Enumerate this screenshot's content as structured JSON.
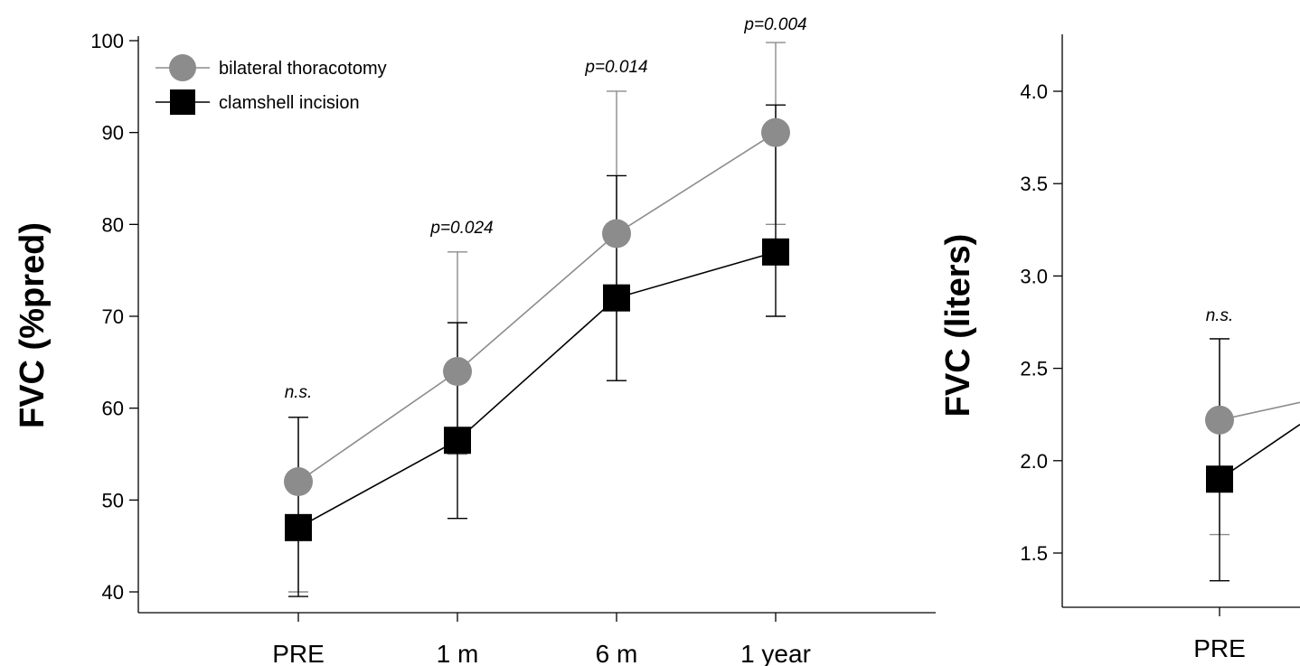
{
  "chart_data": [
    {
      "type": "line",
      "categories": [
        "PRE",
        "1 m",
        "6 m",
        "1 year"
      ],
      "ylabel": "FVC (%pred)",
      "ylim": [
        40,
        100
      ],
      "yticks": [
        40,
        50,
        60,
        70,
        80,
        90,
        100
      ],
      "grid": false,
      "legend_position": "top-left",
      "annotations": [
        "n.s.",
        "p=0.024",
        "p=0.014",
        "p=0.004"
      ],
      "series": [
        {
          "name": "bilateral thoracotomy",
          "marker": "circle",
          "color": "#8c8c8c",
          "values": [
            52,
            64,
            79,
            90
          ],
          "err_low": [
            40,
            55,
            63,
            80
          ],
          "err_high": [
            59,
            77,
            94.5,
            99.8
          ]
        },
        {
          "name": "clamshell incision",
          "marker": "square",
          "color": "#000000",
          "values": [
            47,
            56.5,
            72,
            77
          ],
          "err_low": [
            39.5,
            48,
            63,
            70
          ],
          "err_high": [
            59,
            69.3,
            85.3,
            93
          ]
        }
      ]
    },
    {
      "type": "line",
      "categories": [
        "PRE"
      ],
      "ylabel": "FVC (liters)",
      "ylim": [
        1.25,
        4.25
      ],
      "yticks": [
        1.5,
        2.0,
        2.5,
        3.0,
        3.5,
        4.0
      ],
      "ytick_labels": [
        "1.5",
        "2.0",
        "2.5",
        "3.0",
        "3.5",
        "4.0"
      ],
      "grid": false,
      "annotations": [
        "n.s."
      ],
      "series": [
        {
          "marker": "circle",
          "color": "#8c8c8c",
          "values": [
            2.22
          ],
          "err_low": [
            1.6
          ],
          "err_high": [
            2.66
          ]
        },
        {
          "marker": "square",
          "color": "#000000",
          "values": [
            1.9
          ],
          "err_low": [
            1.35
          ],
          "err_high": [
            2.66
          ]
        }
      ]
    }
  ]
}
